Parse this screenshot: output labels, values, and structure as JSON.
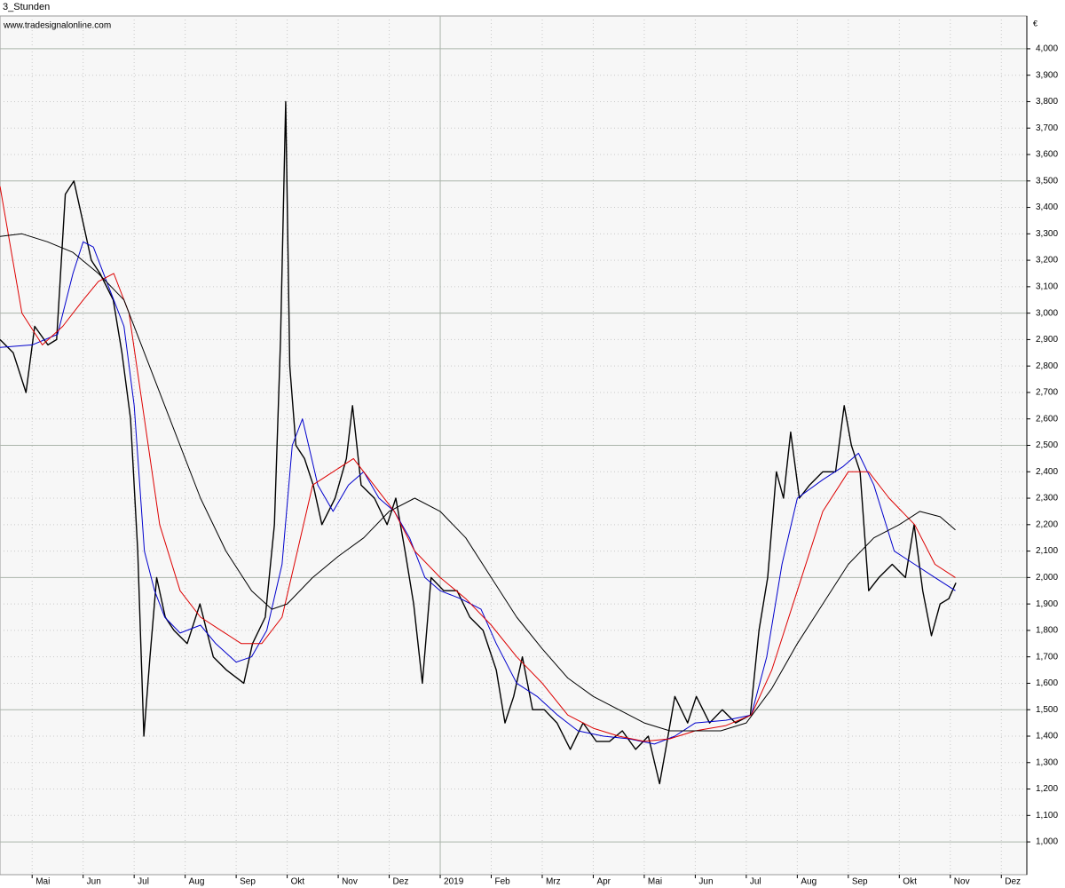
{
  "chart_data": {
    "type": "line",
    "title": "3_Stunden",
    "subtitle": "www.tradesignalonline.com",
    "unit": "€",
    "xlim": [
      0.37,
      20.5
    ],
    "xticks": [
      {
        "value": 1,
        "label": "Mai"
      },
      {
        "value": 2,
        "label": "Jun"
      },
      {
        "value": 3,
        "label": "Jul"
      },
      {
        "value": 4,
        "label": "Aug"
      },
      {
        "value": 5,
        "label": "Sep"
      },
      {
        "value": 6,
        "label": "Okt"
      },
      {
        "value": 7,
        "label": "Nov"
      },
      {
        "value": 8,
        "label": "Dez"
      },
      {
        "value": 9,
        "label": "2019"
      },
      {
        "value": 10,
        "label": "Feb"
      },
      {
        "value": 11,
        "label": "Mrz"
      },
      {
        "value": 12,
        "label": "Apr"
      },
      {
        "value": 13,
        "label": "Mai"
      },
      {
        "value": 14,
        "label": "Jun"
      },
      {
        "value": 15,
        "label": "Jul"
      },
      {
        "value": 16,
        "label": "Aug"
      },
      {
        "value": 17,
        "label": "Sep"
      },
      {
        "value": 18,
        "label": "Okt"
      },
      {
        "value": 19,
        "label": "Nov"
      },
      {
        "value": 20,
        "label": "Dez"
      }
    ],
    "ylim": [
      876,
      4124
    ],
    "yticks": [
      {
        "value": 1000,
        "label": "1,000"
      },
      {
        "value": 1100,
        "label": "1,100"
      },
      {
        "value": 1200,
        "label": "1,200"
      },
      {
        "value": 1300,
        "label": "1,300"
      },
      {
        "value": 1400,
        "label": "1,400"
      },
      {
        "value": 1500,
        "label": "1,500"
      },
      {
        "value": 1600,
        "label": "1,600"
      },
      {
        "value": 1700,
        "label": "1,700"
      },
      {
        "value": 1800,
        "label": "1,800"
      },
      {
        "value": 1900,
        "label": "1,900"
      },
      {
        "value": 2000,
        "label": "2,000"
      },
      {
        "value": 2100,
        "label": "2,100"
      },
      {
        "value": 2200,
        "label": "2,200"
      },
      {
        "value": 2300,
        "label": "2,300"
      },
      {
        "value": 2400,
        "label": "2,400"
      },
      {
        "value": 2500,
        "label": "2,500"
      },
      {
        "value": 2600,
        "label": "2,600"
      },
      {
        "value": 2700,
        "label": "2,700"
      },
      {
        "value": 2800,
        "label": "2,800"
      },
      {
        "value": 2900,
        "label": "2,900"
      },
      {
        "value": 3000,
        "label": "3,000"
      },
      {
        "value": 3100,
        "label": "3,100"
      },
      {
        "value": 3200,
        "label": "3,200"
      },
      {
        "value": 3300,
        "label": "3,300"
      },
      {
        "value": 3400,
        "label": "3,400"
      },
      {
        "value": 3500,
        "label": "3,500"
      },
      {
        "value": 3600,
        "label": "3,600"
      },
      {
        "value": 3700,
        "label": "3,700"
      },
      {
        "value": 3800,
        "label": "3,800"
      },
      {
        "value": 3900,
        "label": "3,900"
      },
      {
        "value": 4000,
        "label": "4,000"
      }
    ],
    "grid": true,
    "series": [
      {
        "color": "#000000",
        "width": 1.4,
        "x": [
          0.37,
          0.63,
          0.88,
          1.05,
          1.31,
          1.48,
          1.65,
          1.82,
          1.99,
          2.16,
          2.33,
          2.59,
          2.76,
          2.93,
          3.07,
          3.19,
          3.31,
          3.44,
          3.61,
          3.78,
          4.04,
          4.29,
          4.55,
          4.81,
          5.15,
          5.32,
          5.57,
          5.75,
          5.87,
          5.97,
          6.05,
          6.17,
          6.34,
          6.51,
          6.68,
          6.94,
          7.16,
          7.28,
          7.45,
          7.71,
          7.96,
          8.13,
          8.31,
          8.48,
          8.65,
          8.82,
          9.07,
          9.33,
          9.58,
          9.84,
          10.1,
          10.27,
          10.44,
          10.61,
          10.81,
          11.04,
          11.29,
          11.55,
          11.8,
          12.06,
          12.32,
          12.57,
          12.83,
          13.08,
          13.3,
          13.42,
          13.6,
          13.85,
          14.02,
          14.28,
          14.53,
          14.79,
          15.08,
          15.25,
          15.42,
          15.59,
          15.73,
          15.87,
          16.04,
          16.24,
          16.5,
          16.75,
          16.92,
          17.06,
          17.23,
          17.4,
          17.6,
          17.86,
          18.12,
          18.29,
          18.46,
          18.63,
          18.8,
          18.97,
          19.11
        ],
        "values": [
          2900,
          2850,
          2700,
          2950,
          2880,
          2900,
          3450,
          3500,
          3350,
          3200,
          3150,
          3050,
          2850,
          2600,
          2100,
          1400,
          1700,
          2000,
          1850,
          1800,
          1750,
          1900,
          1700,
          1650,
          1600,
          1750,
          1850,
          2200,
          2900,
          3800,
          2800,
          2500,
          2450,
          2350,
          2200,
          2300,
          2450,
          2650,
          2350,
          2300,
          2200,
          2300,
          2100,
          1900,
          1600,
          2000,
          1950,
          1950,
          1850,
          1800,
          1650,
          1450,
          1550,
          1700,
          1500,
          1500,
          1450,
          1350,
          1450,
          1380,
          1380,
          1420,
          1350,
          1400,
          1220,
          1350,
          1550,
          1450,
          1550,
          1450,
          1500,
          1450,
          1480,
          1800,
          2000,
          2400,
          2300,
          2550,
          2300,
          2350,
          2400,
          2400,
          2650,
          2500,
          2400,
          1950,
          2000,
          2050,
          2000,
          2200,
          1950,
          1780,
          1900,
          1920,
          1980
        ]
      },
      {
        "color": "#0000cc",
        "width": 1,
        "x": [
          0.37,
          1.0,
          1.5,
          1.8,
          2.0,
          2.2,
          2.5,
          2.8,
          3.0,
          3.2,
          3.4,
          3.6,
          3.9,
          4.3,
          4.6,
          5.0,
          5.3,
          5.6,
          5.9,
          6.1,
          6.3,
          6.6,
          6.9,
          7.2,
          7.5,
          7.8,
          8.1,
          8.4,
          8.7,
          9.0,
          9.4,
          9.8,
          10.1,
          10.5,
          10.9,
          11.3,
          11.7,
          12.2,
          12.7,
          13.2,
          13.6,
          14.0,
          14.6,
          15.1,
          15.4,
          15.7,
          16.0,
          16.5,
          16.9,
          17.2,
          17.5,
          17.9,
          18.3,
          18.7,
          19.1
        ],
        "values": [
          2870,
          2880,
          2920,
          3150,
          3270,
          3250,
          3100,
          2950,
          2650,
          2100,
          1950,
          1850,
          1790,
          1820,
          1750,
          1680,
          1700,
          1800,
          2050,
          2500,
          2600,
          2350,
          2250,
          2350,
          2400,
          2300,
          2250,
          2150,
          2000,
          1950,
          1920,
          1880,
          1750,
          1600,
          1550,
          1480,
          1420,
          1400,
          1390,
          1370,
          1400,
          1450,
          1460,
          1480,
          1700,
          2050,
          2300,
          2370,
          2420,
          2470,
          2350,
          2100,
          2050,
          2000,
          1950
        ]
      },
      {
        "color": "#dd0000",
        "width": 1,
        "x": [
          0.37,
          0.8,
          1.2,
          1.6,
          2.0,
          2.3,
          2.6,
          2.9,
          3.2,
          3.5,
          3.9,
          4.3,
          4.7,
          5.1,
          5.5,
          5.9,
          6.2,
          6.5,
          6.9,
          7.3,
          7.7,
          8.1,
          8.5,
          9.0,
          9.5,
          10.0,
          10.5,
          11.0,
          11.5,
          12.0,
          12.5,
          13.0,
          13.5,
          14.0,
          14.6,
          15.1,
          15.5,
          16.0,
          16.5,
          17.0,
          17.4,
          17.8,
          18.3,
          18.7,
          19.1
        ],
        "values": [
          3480,
          3000,
          2880,
          2950,
          3050,
          3120,
          3150,
          3000,
          2600,
          2200,
          1950,
          1850,
          1800,
          1750,
          1750,
          1850,
          2100,
          2350,
          2400,
          2450,
          2350,
          2250,
          2100,
          2000,
          1920,
          1820,
          1700,
          1600,
          1480,
          1430,
          1400,
          1380,
          1390,
          1420,
          1440,
          1480,
          1650,
          1950,
          2250,
          2400,
          2400,
          2300,
          2200,
          2050,
          2000
        ]
      },
      {
        "color": "#000000",
        "width": 1,
        "x": [
          0.37,
          0.8,
          1.3,
          1.8,
          2.3,
          2.8,
          3.3,
          3.8,
          4.3,
          4.8,
          5.3,
          5.7,
          6.0,
          6.5,
          7.0,
          7.5,
          8.0,
          8.5,
          9.0,
          9.5,
          10.0,
          10.5,
          11.0,
          11.5,
          12.0,
          12.5,
          13.0,
          13.5,
          14.0,
          14.5,
          15.0,
          15.5,
          16.0,
          16.5,
          17.0,
          17.5,
          18.0,
          18.4,
          18.8,
          19.1
        ],
        "values": [
          3290,
          3300,
          3270,
          3230,
          3150,
          3050,
          2800,
          2550,
          2300,
          2100,
          1950,
          1880,
          1900,
          2000,
          2080,
          2150,
          2250,
          2300,
          2250,
          2150,
          2000,
          1850,
          1730,
          1620,
          1550,
          1500,
          1450,
          1420,
          1420,
          1420,
          1450,
          1580,
          1750,
          1900,
          2050,
          2150,
          2200,
          2250,
          2230,
          2180
        ]
      }
    ]
  }
}
